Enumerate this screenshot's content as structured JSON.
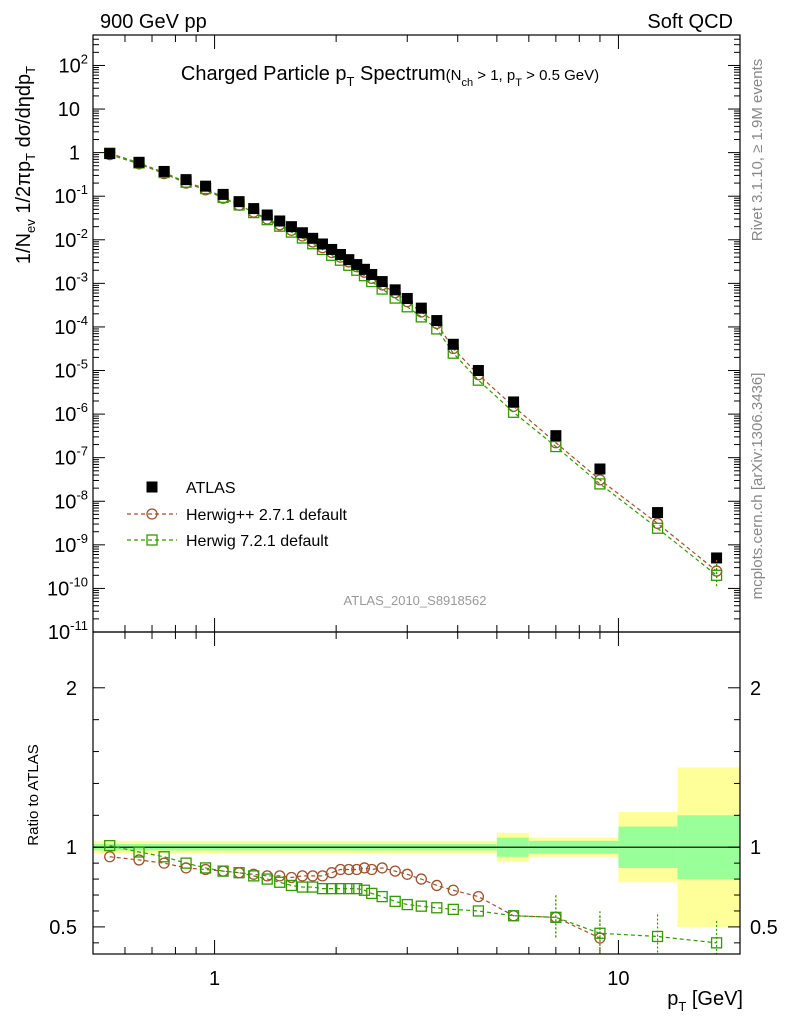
{
  "header": {
    "left": "900 GeV pp",
    "right": "Soft QCD"
  },
  "side_labels": {
    "rivet": "Rivet 3.1.10, ≥ 1.9M events",
    "mcplots": "mcplots.cern.ch [arXiv:1306.3436]"
  },
  "watermark": "ATLAS_2010_S8918562",
  "chart_data": [
    {
      "type": "scatter",
      "title": "Charged Particle pT Spectrum",
      "subtitle": "(Nch > 1, pT > 0.5 GeV)",
      "ylabel": "1/Nev 1/2πpT dσ/dηdpT",
      "xlabel": "pT [GeV]",
      "xscale": "log",
      "yscale": "log",
      "xlim": [
        0.5,
        20
      ],
      "ylim": [
        1e-11,
        500
      ],
      "y_ticks": [
        "10^-11",
        "10^-10",
        "10^-9",
        "10^-8",
        "10^-7",
        "10^-6",
        "10^-5",
        "10^-4",
        "10^-3",
        "10^-2",
        "10^-1",
        "1",
        "10",
        "10^2"
      ],
      "legend_position": "bottom-left",
      "series": [
        {
          "name": "ATLAS",
          "color": "#000000",
          "marker": "filled-square",
          "x": [
            0.55,
            0.65,
            0.75,
            0.85,
            0.95,
            1.05,
            1.15,
            1.25,
            1.35,
            1.45,
            1.55,
            1.65,
            1.75,
            1.85,
            1.95,
            2.05,
            2.15,
            2.25,
            2.35,
            2.45,
            2.6,
            2.8,
            3.0,
            3.25,
            3.55,
            3.9,
            4.5,
            5.5,
            7.0,
            9.0,
            12.5,
            17.5
          ],
          "y": [
            0.95,
            0.6,
            0.37,
            0.24,
            0.17,
            0.11,
            0.075,
            0.052,
            0.037,
            0.027,
            0.02,
            0.0145,
            0.0108,
            0.008,
            0.006,
            0.0046,
            0.0035,
            0.0027,
            0.0021,
            0.0016,
            0.0011,
            0.00071,
            0.00045,
            0.00027,
            0.00014,
            4e-05,
            1e-05,
            1.9e-06,
            3.2e-07,
            5.5e-08,
            5.5e-09,
            5e-10
          ]
        },
        {
          "name": "Herwig++ 2.7.1 default",
          "color": "#a0522d",
          "marker": "open-circle",
          "x": [
            0.55,
            0.65,
            0.75,
            0.85,
            0.95,
            1.05,
            1.15,
            1.25,
            1.35,
            1.45,
            1.55,
            1.65,
            1.75,
            1.85,
            1.95,
            2.05,
            2.15,
            2.25,
            2.35,
            2.45,
            2.6,
            2.8,
            3.0,
            3.25,
            3.55,
            3.9,
            4.5,
            5.5,
            7.0,
            9.0,
            12.5,
            17.5
          ],
          "y": [
            0.9,
            0.55,
            0.33,
            0.2,
            0.14,
            0.09,
            0.062,
            0.043,
            0.03,
            0.022,
            0.0165,
            0.0122,
            0.0089,
            0.0066,
            0.0051,
            0.004,
            0.0031,
            0.0024,
            0.0018,
            0.0013,
            0.00092,
            0.00061,
            0.00038,
            0.00022,
            0.00012,
            3.2e-05,
            8e-06,
            1.5e-06,
            2.2e-07,
            3.1e-08,
            3.1e-09,
            2.5e-10
          ]
        },
        {
          "name": "Herwig 7.2.1 default",
          "color": "#339900",
          "marker": "open-square",
          "x": [
            0.55,
            0.65,
            0.75,
            0.85,
            0.95,
            1.05,
            1.15,
            1.25,
            1.35,
            1.45,
            1.55,
            1.65,
            1.75,
            1.85,
            1.95,
            2.05,
            2.15,
            2.25,
            2.35,
            2.45,
            2.6,
            2.8,
            3.0,
            3.25,
            3.55,
            3.9,
            4.5,
            5.5,
            7.0,
            9.0,
            12.5,
            17.5
          ],
          "y": [
            0.97,
            0.58,
            0.35,
            0.21,
            0.15,
            0.094,
            0.063,
            0.042,
            0.029,
            0.0205,
            0.015,
            0.011,
            0.0081,
            0.006,
            0.0044,
            0.0034,
            0.0026,
            0.002,
            0.0015,
            0.0011,
            0.00074,
            0.00046,
            0.00029,
            0.00017,
            9e-05,
            2.5e-05,
            6e-06,
            1.1e-06,
            1.8e-07,
            2.5e-08,
            2.4e-09,
            2e-10
          ]
        }
      ]
    },
    {
      "type": "scatter",
      "ylabel": "Ratio to ATLAS",
      "xlabel": "pT [GeV]",
      "xscale": "log",
      "xlim": [
        0.5,
        20
      ],
      "ylim": [
        0.33,
        2.35
      ],
      "y_ticks": [
        0.5,
        1,
        2
      ],
      "x_ticks": [
        1,
        10
      ],
      "reference_line": 1,
      "uncertainty_bands": {
        "x_edges": [
          0.5,
          5.0,
          6.0,
          10.0,
          14.0,
          20.0
        ],
        "inner_half_width": [
          0.02,
          0.06,
          0.04,
          0.13,
          0.2
        ],
        "outer_half_width": [
          0.04,
          0.09,
          0.06,
          0.22,
          0.5
        ]
      },
      "series": [
        {
          "name": "Herwig++ 2.7.1 default",
          "color": "#a0522d",
          "marker": "open-circle",
          "x": [
            0.55,
            0.65,
            0.75,
            0.85,
            0.95,
            1.05,
            1.15,
            1.25,
            1.35,
            1.45,
            1.55,
            1.65,
            1.75,
            1.85,
            1.95,
            2.05,
            2.15,
            2.25,
            2.35,
            2.45,
            2.6,
            2.8,
            3.0,
            3.25,
            3.55,
            3.9,
            4.5,
            5.5,
            7.0,
            9.0
          ],
          "y": [
            0.94,
            0.92,
            0.9,
            0.87,
            0.86,
            0.85,
            0.84,
            0.83,
            0.82,
            0.82,
            0.81,
            0.82,
            0.82,
            0.82,
            0.84,
            0.86,
            0.86,
            0.86,
            0.87,
            0.86,
            0.87,
            0.85,
            0.83,
            0.8,
            0.76,
            0.73,
            0.69,
            0.57,
            0.56,
            0.43
          ]
        },
        {
          "name": "Herwig 7.2.1 default",
          "color": "#339900",
          "marker": "open-square",
          "x": [
            0.55,
            0.65,
            0.75,
            0.85,
            0.95,
            1.05,
            1.15,
            1.25,
            1.35,
            1.45,
            1.55,
            1.65,
            1.75,
            1.85,
            1.95,
            2.05,
            2.15,
            2.25,
            2.35,
            2.45,
            2.6,
            2.8,
            3.0,
            3.25,
            3.55,
            3.9,
            4.5,
            5.5,
            7.0,
            9.0,
            12.5,
            17.5
          ],
          "y": [
            1.01,
            0.97,
            0.94,
            0.9,
            0.87,
            0.85,
            0.84,
            0.82,
            0.8,
            0.78,
            0.76,
            0.75,
            0.75,
            0.74,
            0.74,
            0.74,
            0.74,
            0.74,
            0.73,
            0.71,
            0.69,
            0.66,
            0.64,
            0.63,
            0.62,
            0.61,
            0.6,
            0.57,
            0.56,
            0.46,
            0.44,
            0.4
          ]
        }
      ]
    }
  ]
}
